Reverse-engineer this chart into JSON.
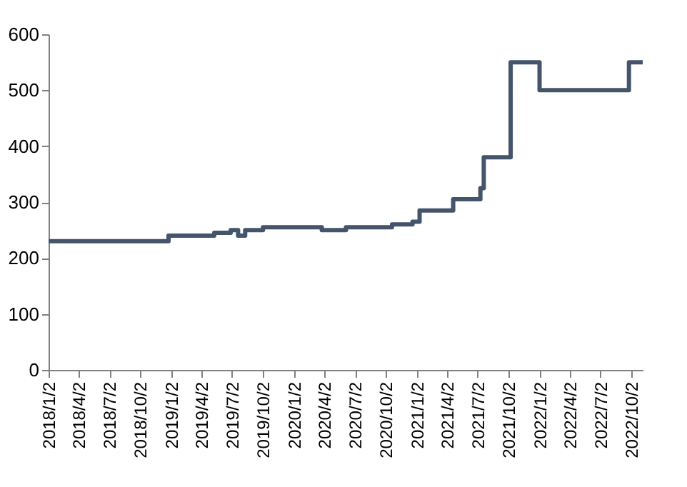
{
  "chart_data": {
    "type": "step",
    "color": "#44546a",
    "grid": false,
    "marker": "none",
    "line_style": "solid",
    "x": [
      "2018-01-02",
      "2018-12-25",
      "2019-05-10",
      "2019-06-28",
      "2019-07-20",
      "2019-08-10",
      "2019-10-02",
      "2020-03-25",
      "2020-06-05",
      "2020-10-20",
      "2020-12-20",
      "2021-01-10",
      "2021-04-20",
      "2021-07-10",
      "2021-07-20",
      "2021-10-08",
      "2022-01-02",
      "2022-09-25",
      "2022-11-05"
    ],
    "values": [
      230,
      240,
      245,
      250,
      240,
      250,
      255,
      250,
      255,
      260,
      265,
      285,
      305,
      325,
      380,
      550,
      500,
      550,
      550
    ],
    "xlim": [
      "2018-01-02",
      "2022-11-05"
    ],
    "xticks": [
      {
        "value": "2018-01-02",
        "label": "2018/1/2"
      },
      {
        "value": "2018-04-02",
        "label": "2018/4/2"
      },
      {
        "value": "2018-07-02",
        "label": "2018/7/2"
      },
      {
        "value": "2018-10-02",
        "label": "2018/10/2"
      },
      {
        "value": "2019-01-02",
        "label": "2019/1/2"
      },
      {
        "value": "2019-04-02",
        "label": "2019/4/2"
      },
      {
        "value": "2019-07-02",
        "label": "2019/7/2"
      },
      {
        "value": "2019-10-02",
        "label": "2019/10/2"
      },
      {
        "value": "2020-01-02",
        "label": "2020/1/2"
      },
      {
        "value": "2020-04-02",
        "label": "2020/4/2"
      },
      {
        "value": "2020-07-02",
        "label": "2020/7/2"
      },
      {
        "value": "2020-10-02",
        "label": "2020/10/2"
      },
      {
        "value": "2021-01-02",
        "label": "2021/1/2"
      },
      {
        "value": "2021-04-02",
        "label": "2021/4/2"
      },
      {
        "value": "2021-07-02",
        "label": "2021/7/2"
      },
      {
        "value": "2021-10-02",
        "label": "2021/10/2"
      },
      {
        "value": "2022-01-02",
        "label": "2022/1/2"
      },
      {
        "value": "2022-04-02",
        "label": "2022/4/2"
      },
      {
        "value": "2022-07-02",
        "label": "2022/7/2"
      },
      {
        "value": "2022-10-02",
        "label": "2022/10/2"
      }
    ],
    "ylim": [
      0,
      600
    ],
    "yticks": [
      0,
      100,
      200,
      300,
      400,
      500,
      600
    ]
  }
}
